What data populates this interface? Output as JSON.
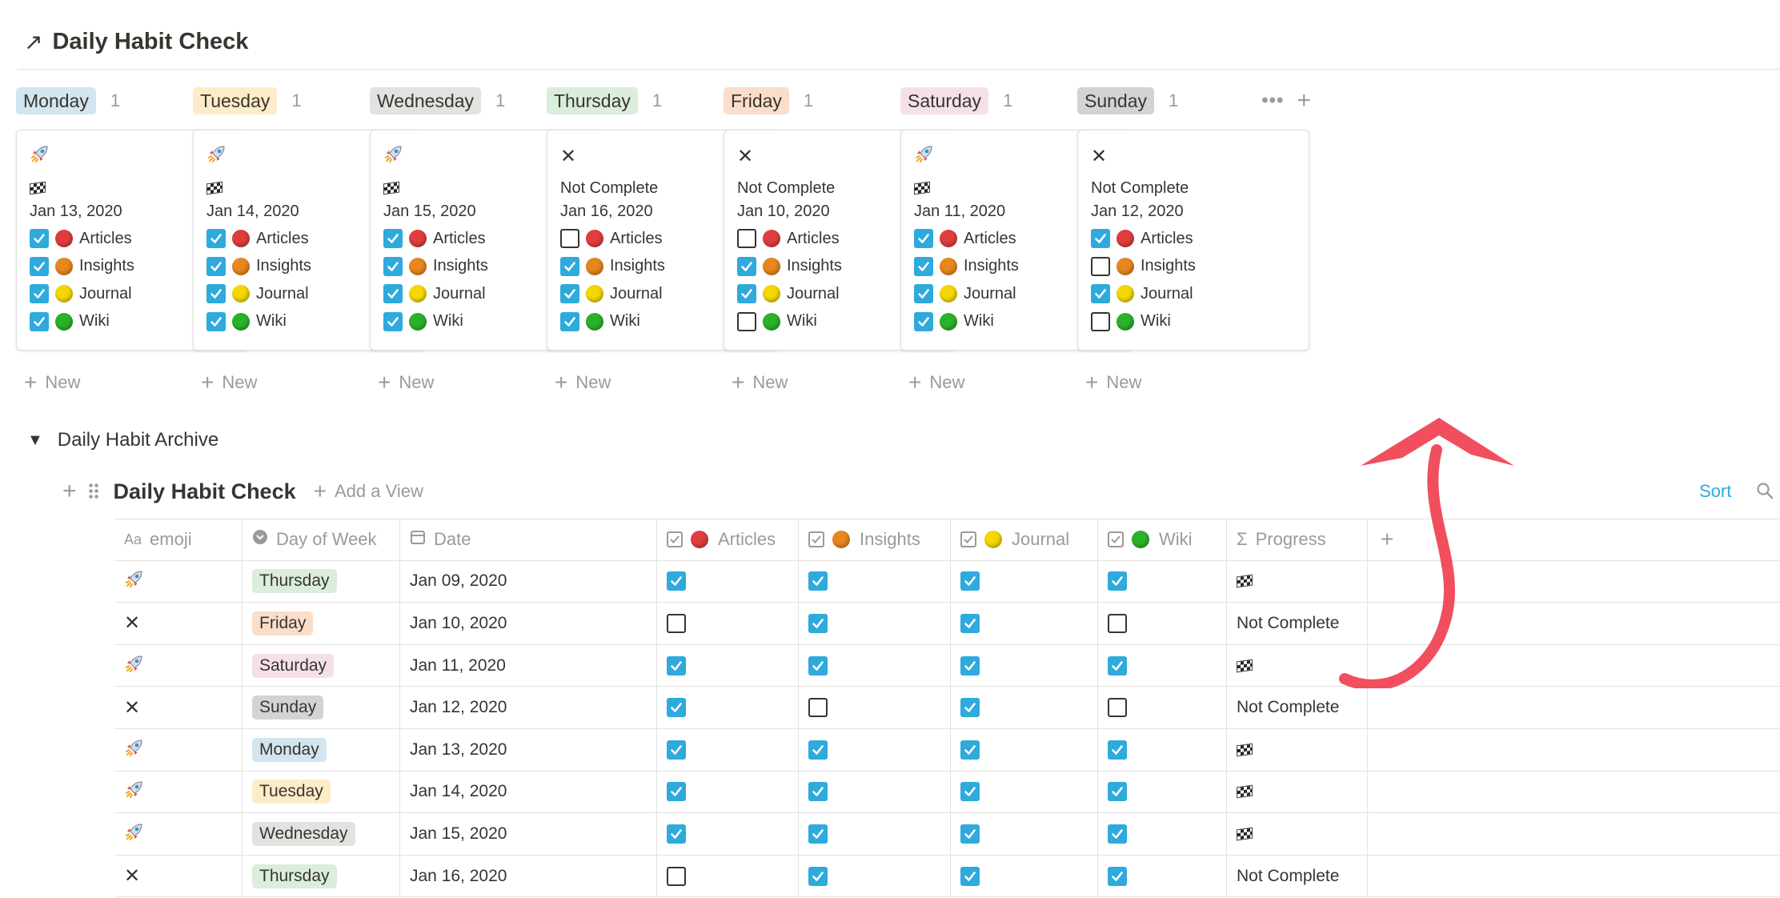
{
  "page": {
    "title": "Daily Habit Check"
  },
  "colors": {
    "monday": "#d3e5ef",
    "tuesday": "#fdecc8",
    "wednesday": "#e3e2e0",
    "thursday": "#dbeddb",
    "friday": "#fadec9",
    "saturday": "#f5e0e9",
    "sunday": "#d3d3d3",
    "checkbox_blue": "#2eaadc",
    "articles": "#e03e3e",
    "insights": "#e8871e",
    "journal": "#f5d800",
    "wiki": "#2ab32a",
    "arrow_red": "#f0404f"
  },
  "board": {
    "new_label": "New",
    "habit_labels": {
      "articles": "Articles",
      "insights": "Insights",
      "journal": "Journal",
      "wiki": "Wiki"
    },
    "columns": [
      {
        "day": "Monday",
        "count": "1",
        "color_key": "monday",
        "emoji": "rocket",
        "progress": "",
        "date": "Jan 13, 2020",
        "articles": true,
        "insights": true,
        "journal": true,
        "wiki": true
      },
      {
        "day": "Tuesday",
        "count": "1",
        "color_key": "tuesday",
        "emoji": "rocket",
        "progress": "",
        "date": "Jan 14, 2020",
        "articles": true,
        "insights": true,
        "journal": true,
        "wiki": true
      },
      {
        "day": "Wednesday",
        "count": "1",
        "color_key": "wednesday",
        "emoji": "rocket",
        "progress": "",
        "date": "Jan 15, 2020",
        "articles": true,
        "insights": true,
        "journal": true,
        "wiki": true
      },
      {
        "day": "Thursday",
        "count": "1",
        "color_key": "thursday",
        "emoji": "x",
        "progress": "Not Complete",
        "date": "Jan 16, 2020",
        "articles": false,
        "insights": true,
        "journal": true,
        "wiki": true
      },
      {
        "day": "Friday",
        "count": "1",
        "color_key": "friday",
        "emoji": "x",
        "progress": "Not Complete",
        "date": "Jan 10, 2020",
        "articles": false,
        "insights": true,
        "journal": true,
        "wiki": false
      },
      {
        "day": "Saturday",
        "count": "1",
        "color_key": "saturday",
        "emoji": "rocket",
        "progress": "",
        "date": "Jan 11, 2020",
        "articles": true,
        "insights": true,
        "journal": true,
        "wiki": true
      },
      {
        "day": "Sunday",
        "count": "1",
        "color_key": "sunday",
        "emoji": "x",
        "progress": "Not Complete",
        "date": "Jan 12, 2020",
        "articles": true,
        "insights": false,
        "journal": true,
        "wiki": false
      }
    ]
  },
  "archive": {
    "toggle_label": "Daily Habit Archive",
    "view_title": "Daily Habit Check",
    "add_view_label": "Add a View",
    "sort_label": "Sort",
    "headers": {
      "emoji": "emoji",
      "day": "Day of Week",
      "date": "Date",
      "articles": "Articles",
      "insights": "Insights",
      "journal": "Journal",
      "wiki": "Wiki",
      "progress": "Progress"
    },
    "rows": [
      {
        "emoji": "rocket",
        "day": "Thursday",
        "color_key": "thursday",
        "date": "Jan 09, 2020",
        "articles": true,
        "insights": true,
        "journal": true,
        "wiki": true,
        "progress": ""
      },
      {
        "emoji": "x",
        "day": "Friday",
        "color_key": "friday",
        "date": "Jan 10, 2020",
        "articles": false,
        "insights": true,
        "journal": true,
        "wiki": false,
        "progress": "Not Complete"
      },
      {
        "emoji": "rocket",
        "day": "Saturday",
        "color_key": "saturday",
        "date": "Jan 11, 2020",
        "articles": true,
        "insights": true,
        "journal": true,
        "wiki": true,
        "progress": ""
      },
      {
        "emoji": "x",
        "day": "Sunday",
        "color_key": "sunday",
        "date": "Jan 12, 2020",
        "articles": true,
        "insights": false,
        "journal": true,
        "wiki": false,
        "progress": "Not Complete"
      },
      {
        "emoji": "rocket",
        "day": "Monday",
        "color_key": "monday",
        "date": "Jan 13, 2020",
        "articles": true,
        "insights": true,
        "journal": true,
        "wiki": true,
        "progress": ""
      },
      {
        "emoji": "rocket",
        "day": "Tuesday",
        "color_key": "tuesday",
        "date": "Jan 14, 2020",
        "articles": true,
        "insights": true,
        "journal": true,
        "wiki": true,
        "progress": ""
      },
      {
        "emoji": "rocket",
        "day": "Wednesday",
        "color_key": "wednesday",
        "date": "Jan 15, 2020",
        "articles": true,
        "insights": true,
        "journal": true,
        "wiki": true,
        "progress": ""
      },
      {
        "emoji": "x",
        "day": "Thursday",
        "color_key": "thursday",
        "date": "Jan 16, 2020",
        "articles": false,
        "insights": true,
        "journal": true,
        "wiki": true,
        "progress": "Not Complete"
      }
    ]
  }
}
